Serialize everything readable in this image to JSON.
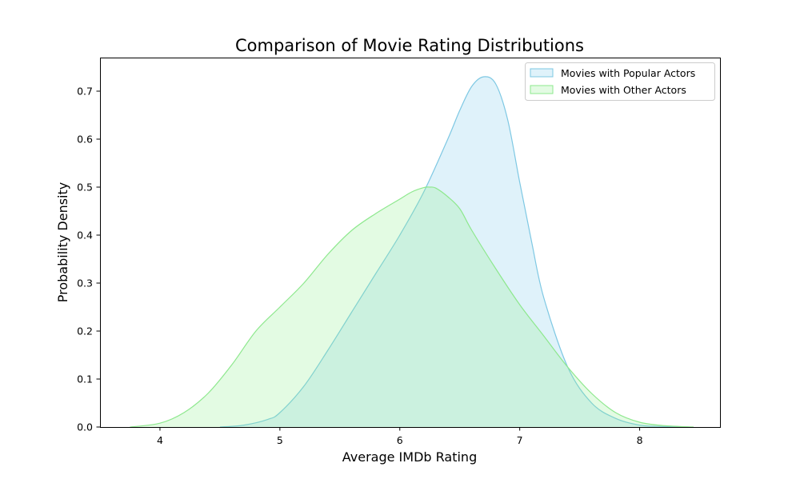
{
  "chart_data": {
    "type": "area",
    "title": "Comparison of Movie Rating Distributions",
    "xlabel": "Average IMDb Rating",
    "ylabel": "Probability Density",
    "xlim": [
      3.5,
      8.67
    ],
    "ylim": [
      0,
      0.77
    ],
    "xticks": [
      4,
      5,
      6,
      7,
      8
    ],
    "xtick_labels": [
      "4",
      "5",
      "6",
      "7",
      "8"
    ],
    "yticks": [
      0,
      0.1,
      0.2,
      0.3,
      0.4,
      0.5,
      0.6,
      0.7
    ],
    "ytick_labels": [
      "0.0",
      "0.1",
      "0.2",
      "0.3",
      "0.4",
      "0.5",
      "0.6",
      "0.7"
    ],
    "grid": false,
    "legend_position": "upper-right",
    "series": [
      {
        "name": "Movies with Popular Actors",
        "fill": "#87ceeb",
        "stroke": "#7ec8e3",
        "fill_opacity": 0.27,
        "x": [
          4.5,
          4.7,
          4.9,
          5.0,
          5.2,
          5.4,
          5.6,
          5.8,
          6.0,
          6.2,
          6.4,
          6.5,
          6.6,
          6.7,
          6.8,
          6.9,
          7.0,
          7.1,
          7.2,
          7.4,
          7.6,
          7.8,
          8.0,
          8.2,
          8.4
        ],
        "y": [
          0.0,
          0.004,
          0.016,
          0.03,
          0.085,
          0.16,
          0.24,
          0.32,
          0.4,
          0.49,
          0.6,
          0.66,
          0.71,
          0.73,
          0.715,
          0.64,
          0.51,
          0.385,
          0.27,
          0.125,
          0.05,
          0.018,
          0.004,
          0.001,
          0.0
        ]
      },
      {
        "name": "Movies with Other Actors",
        "fill": "#90ee90",
        "stroke": "#8ee88e",
        "fill_opacity": 0.25,
        "x": [
          3.75,
          4.0,
          4.2,
          4.4,
          4.6,
          4.8,
          5.0,
          5.2,
          5.4,
          5.6,
          5.8,
          6.0,
          6.1,
          6.2,
          6.25,
          6.3,
          6.4,
          6.5,
          6.6,
          6.8,
          7.0,
          7.2,
          7.4,
          7.6,
          7.8,
          8.0,
          8.2,
          8.45
        ],
        "y": [
          0.0,
          0.008,
          0.03,
          0.07,
          0.13,
          0.2,
          0.25,
          0.3,
          0.36,
          0.41,
          0.445,
          0.475,
          0.49,
          0.499,
          0.5,
          0.498,
          0.48,
          0.455,
          0.41,
          0.33,
          0.255,
          0.19,
          0.125,
          0.07,
          0.03,
          0.01,
          0.003,
          0.0
        ]
      }
    ]
  }
}
